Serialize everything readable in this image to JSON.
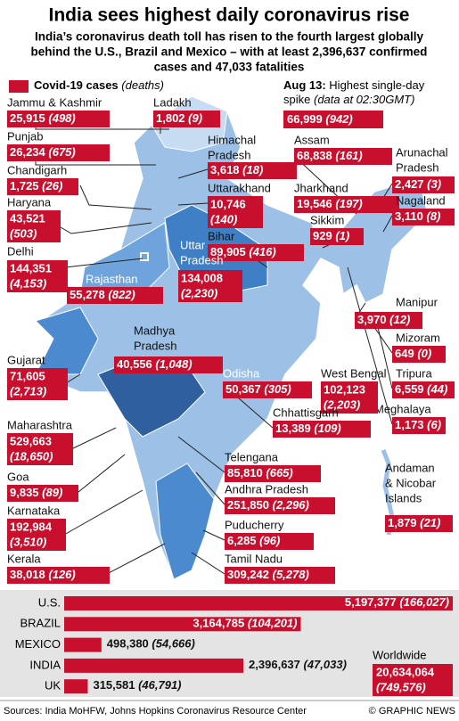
{
  "header": {
    "title": "India sees highest daily coronavirus rise",
    "subtitle": [
      "India’s coronavirus death toll has risen to the fourth largest globally",
      "behind the U.S., Brazil and Mexico – with at least 2,396,637 confirmed",
      "cases and 47,033 fatalities"
    ]
  },
  "legend": {
    "label": "Covid-19 cases",
    "sub": "(deaths)"
  },
  "spike": {
    "date": "Aug 13:",
    "text": "Highest single-day",
    "text2": "spike",
    "note": "(data at 02:30GMT)",
    "cases": "66,999",
    "deaths": "(942)"
  },
  "states": [
    {
      "name": [
        "Jammu & Kashmir"
      ],
      "cases": "25,915",
      "deaths": "(498)"
    },
    {
      "name": [
        "Punjab"
      ],
      "cases": "26,234",
      "deaths": "(675)"
    },
    {
      "name": [
        "Chandigarh"
      ],
      "cases": "1,725",
      "deaths": "(26)"
    },
    {
      "name": [
        "Haryana"
      ],
      "cases": "43,521",
      "deaths": "(503)"
    },
    {
      "name": [
        "Delhi"
      ],
      "cases": "144,351",
      "deaths": "(4,153)"
    },
    {
      "name": [
        "Rajasthan"
      ],
      "cases": "55,278",
      "deaths": "(822)"
    },
    {
      "name": [
        "Ladakh"
      ],
      "cases": "1,802",
      "deaths": "(9)"
    },
    {
      "name": [
        "Himachal",
        "Pradesh"
      ],
      "cases": "3,618",
      "deaths": "(18)"
    },
    {
      "name": [
        "Uttarakhand"
      ],
      "cases": "10,746",
      "deaths": "(140)"
    },
    {
      "name": [
        "Bihar"
      ],
      "cases": "89,905",
      "deaths": "(416)"
    },
    {
      "name": [
        "Uttar",
        "Pradesh"
      ],
      "cases": "134,008",
      "deaths": "(2,230)"
    },
    {
      "name": [
        "Madhya",
        "Pradesh"
      ],
      "cases": "40,556",
      "deaths": "(1,048)"
    },
    {
      "name": [
        "Assam"
      ],
      "cases": "68,838",
      "deaths": "(161)"
    },
    {
      "name": [
        "Jharkhand"
      ],
      "cases": "19,546",
      "deaths": "(197)"
    },
    {
      "name": [
        "Sikkim"
      ],
      "cases": "929",
      "deaths": "(1)"
    },
    {
      "name": [
        "Arunachal",
        "Pradesh"
      ],
      "cases": "2,427",
      "deaths": "(3)"
    },
    {
      "name": [
        "Nagaland"
      ],
      "cases": "3,110",
      "deaths": "(8)"
    },
    {
      "name": [
        "Manipur"
      ],
      "cases": "3,970",
      "deaths": "(12)"
    },
    {
      "name": [
        "Mizoram"
      ],
      "cases": "649",
      "deaths": "(0)"
    },
    {
      "name": [
        "Tripura"
      ],
      "cases": "6,559",
      "deaths": "(44)"
    },
    {
      "name": [
        "Meghalaya"
      ],
      "cases": "1,173",
      "deaths": "(6)"
    },
    {
      "name": [
        "Odisha"
      ],
      "cases": "50,367",
      "deaths": "(305)"
    },
    {
      "name": [
        "West Bengal"
      ],
      "cases": "102,123",
      "deaths": "(2,203)"
    },
    {
      "name": [
        "Chhattisgarh"
      ],
      "cases": "13,389",
      "deaths": "(109)"
    },
    {
      "name": [
        "Gujarat"
      ],
      "cases": "71,605",
      "deaths": "(2,713)"
    },
    {
      "name": [
        "Maharashtra"
      ],
      "cases": "529,663",
      "deaths": "(18,650)"
    },
    {
      "name": [
        "Goa"
      ],
      "cases": "9,835",
      "deaths": "(89)"
    },
    {
      "name": [
        "Karnataka"
      ],
      "cases": "192,984",
      "deaths": "(3,510)"
    },
    {
      "name": [
        "Kerala"
      ],
      "cases": "38,018",
      "deaths": "(126)"
    },
    {
      "name": [
        "Telengana"
      ],
      "cases": "85,810",
      "deaths": "(665)"
    },
    {
      "name": [
        "Andhra Pradesh"
      ],
      "cases": "251,850",
      "deaths": "(2,296)"
    },
    {
      "name": [
        "Puducherry"
      ],
      "cases": "6,285",
      "deaths": "(96)"
    },
    {
      "name": [
        "Tamil Nadu"
      ],
      "cases": "309,242",
      "deaths": "(5,278)"
    },
    {
      "name": [
        "Andaman",
        "& Nicobar",
        "Islands"
      ],
      "cases": "1,879",
      "deaths": "(21)"
    }
  ],
  "chart_data": {
    "type": "bar",
    "orientation": "horizontal",
    "color": "#c8102e",
    "categories": [
      "U.S.",
      "BRAZIL",
      "MEXICO",
      "INDIA",
      "UK"
    ],
    "values": [
      5197377,
      3164785,
      498380,
      2396637,
      315581
    ],
    "value_labels": [
      "5,197,377",
      "3,164,785",
      "498,380",
      "2,396,637",
      "315,581"
    ],
    "deaths_labels": [
      "(166,027)",
      "(104,201)",
      "(54,666)",
      "(47,033)",
      "(46,791)"
    ]
  },
  "worldwide": {
    "label": "Worldwide",
    "cases": "20,634,064",
    "deaths": "(749,576)"
  },
  "footer": {
    "source": "Sources: India MoHFW, Johns Hopkins Coronavirus Resource Center",
    "credit": "© GRAPHIC NEWS"
  }
}
